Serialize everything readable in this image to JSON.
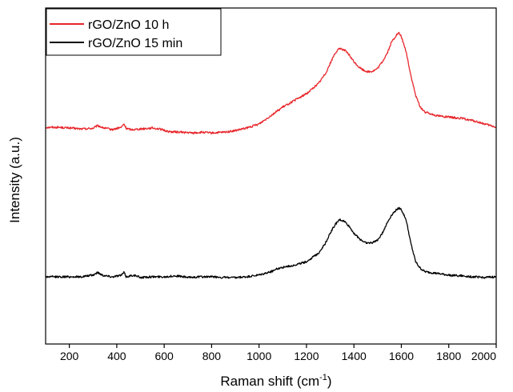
{
  "chart_data": {
    "type": "line",
    "title": "",
    "xlabel": "Raman shift (cm",
    "xlabel_sup": "-1",
    "xlabel_close": ")",
    "ylabel": "Intensity (a.u.)",
    "xlim": [
      100,
      2000
    ],
    "ylim": [
      0,
      1
    ],
    "x_ticks": [
      200,
      400,
      600,
      800,
      1000,
      1200,
      1400,
      1600,
      1800,
      2000
    ],
    "y_ticks_shown": false,
    "grid": false,
    "legend_position": "top-left",
    "series": [
      {
        "name": "rGO/ZnO 10 h",
        "color": "#e8262b",
        "x": [
          100,
          150,
          200,
          250,
          300,
          320,
          340,
          380,
          420,
          430,
          440,
          460,
          500,
          550,
          580,
          620,
          680,
          720,
          760,
          800,
          850,
          900,
          950,
          1000,
          1050,
          1100,
          1150,
          1200,
          1250,
          1280,
          1300,
          1320,
          1340,
          1360,
          1380,
          1400,
          1420,
          1440,
          1460,
          1480,
          1500,
          1520,
          1540,
          1560,
          1580,
          1590,
          1600,
          1620,
          1640,
          1660,
          1680,
          1700,
          1750,
          1800,
          1850,
          1900,
          1950,
          2000
        ],
        "y": [
          0.645,
          0.645,
          0.643,
          0.64,
          0.642,
          0.65,
          0.644,
          0.638,
          0.645,
          0.655,
          0.642,
          0.638,
          0.64,
          0.643,
          0.64,
          0.632,
          0.63,
          0.628,
          0.63,
          0.628,
          0.63,
          0.635,
          0.643,
          0.655,
          0.68,
          0.705,
          0.725,
          0.745,
          0.775,
          0.805,
          0.835,
          0.865,
          0.88,
          0.875,
          0.86,
          0.84,
          0.825,
          0.815,
          0.81,
          0.812,
          0.82,
          0.84,
          0.865,
          0.9,
          0.92,
          0.925,
          0.915,
          0.87,
          0.8,
          0.74,
          0.705,
          0.69,
          0.68,
          0.675,
          0.672,
          0.665,
          0.655,
          0.645
        ]
      },
      {
        "name": "rGO/ZnO 15 min",
        "color": "#000000",
        "x": [
          100,
          150,
          200,
          250,
          300,
          320,
          340,
          380,
          420,
          430,
          440,
          470,
          500,
          550,
          600,
          650,
          700,
          750,
          800,
          850,
          900,
          950,
          1000,
          1050,
          1080,
          1100,
          1150,
          1200,
          1250,
          1280,
          1300,
          1320,
          1340,
          1360,
          1380,
          1400,
          1420,
          1440,
          1460,
          1480,
          1500,
          1520,
          1540,
          1560,
          1580,
          1590,
          1600,
          1620,
          1640,
          1660,
          1680,
          1700,
          1750,
          1800,
          1850,
          1900,
          1950,
          2000
        ],
        "y": [
          0.2,
          0.2,
          0.2,
          0.2,
          0.205,
          0.213,
          0.205,
          0.2,
          0.205,
          0.213,
          0.2,
          0.205,
          0.198,
          0.2,
          0.2,
          0.203,
          0.198,
          0.2,
          0.2,
          0.198,
          0.197,
          0.2,
          0.205,
          0.215,
          0.225,
          0.228,
          0.235,
          0.245,
          0.27,
          0.3,
          0.33,
          0.355,
          0.37,
          0.365,
          0.35,
          0.33,
          0.315,
          0.305,
          0.3,
          0.302,
          0.31,
          0.33,
          0.36,
          0.385,
          0.4,
          0.405,
          0.4,
          0.37,
          0.3,
          0.245,
          0.225,
          0.215,
          0.21,
          0.205,
          0.203,
          0.2,
          0.198,
          0.2
        ]
      }
    ]
  }
}
